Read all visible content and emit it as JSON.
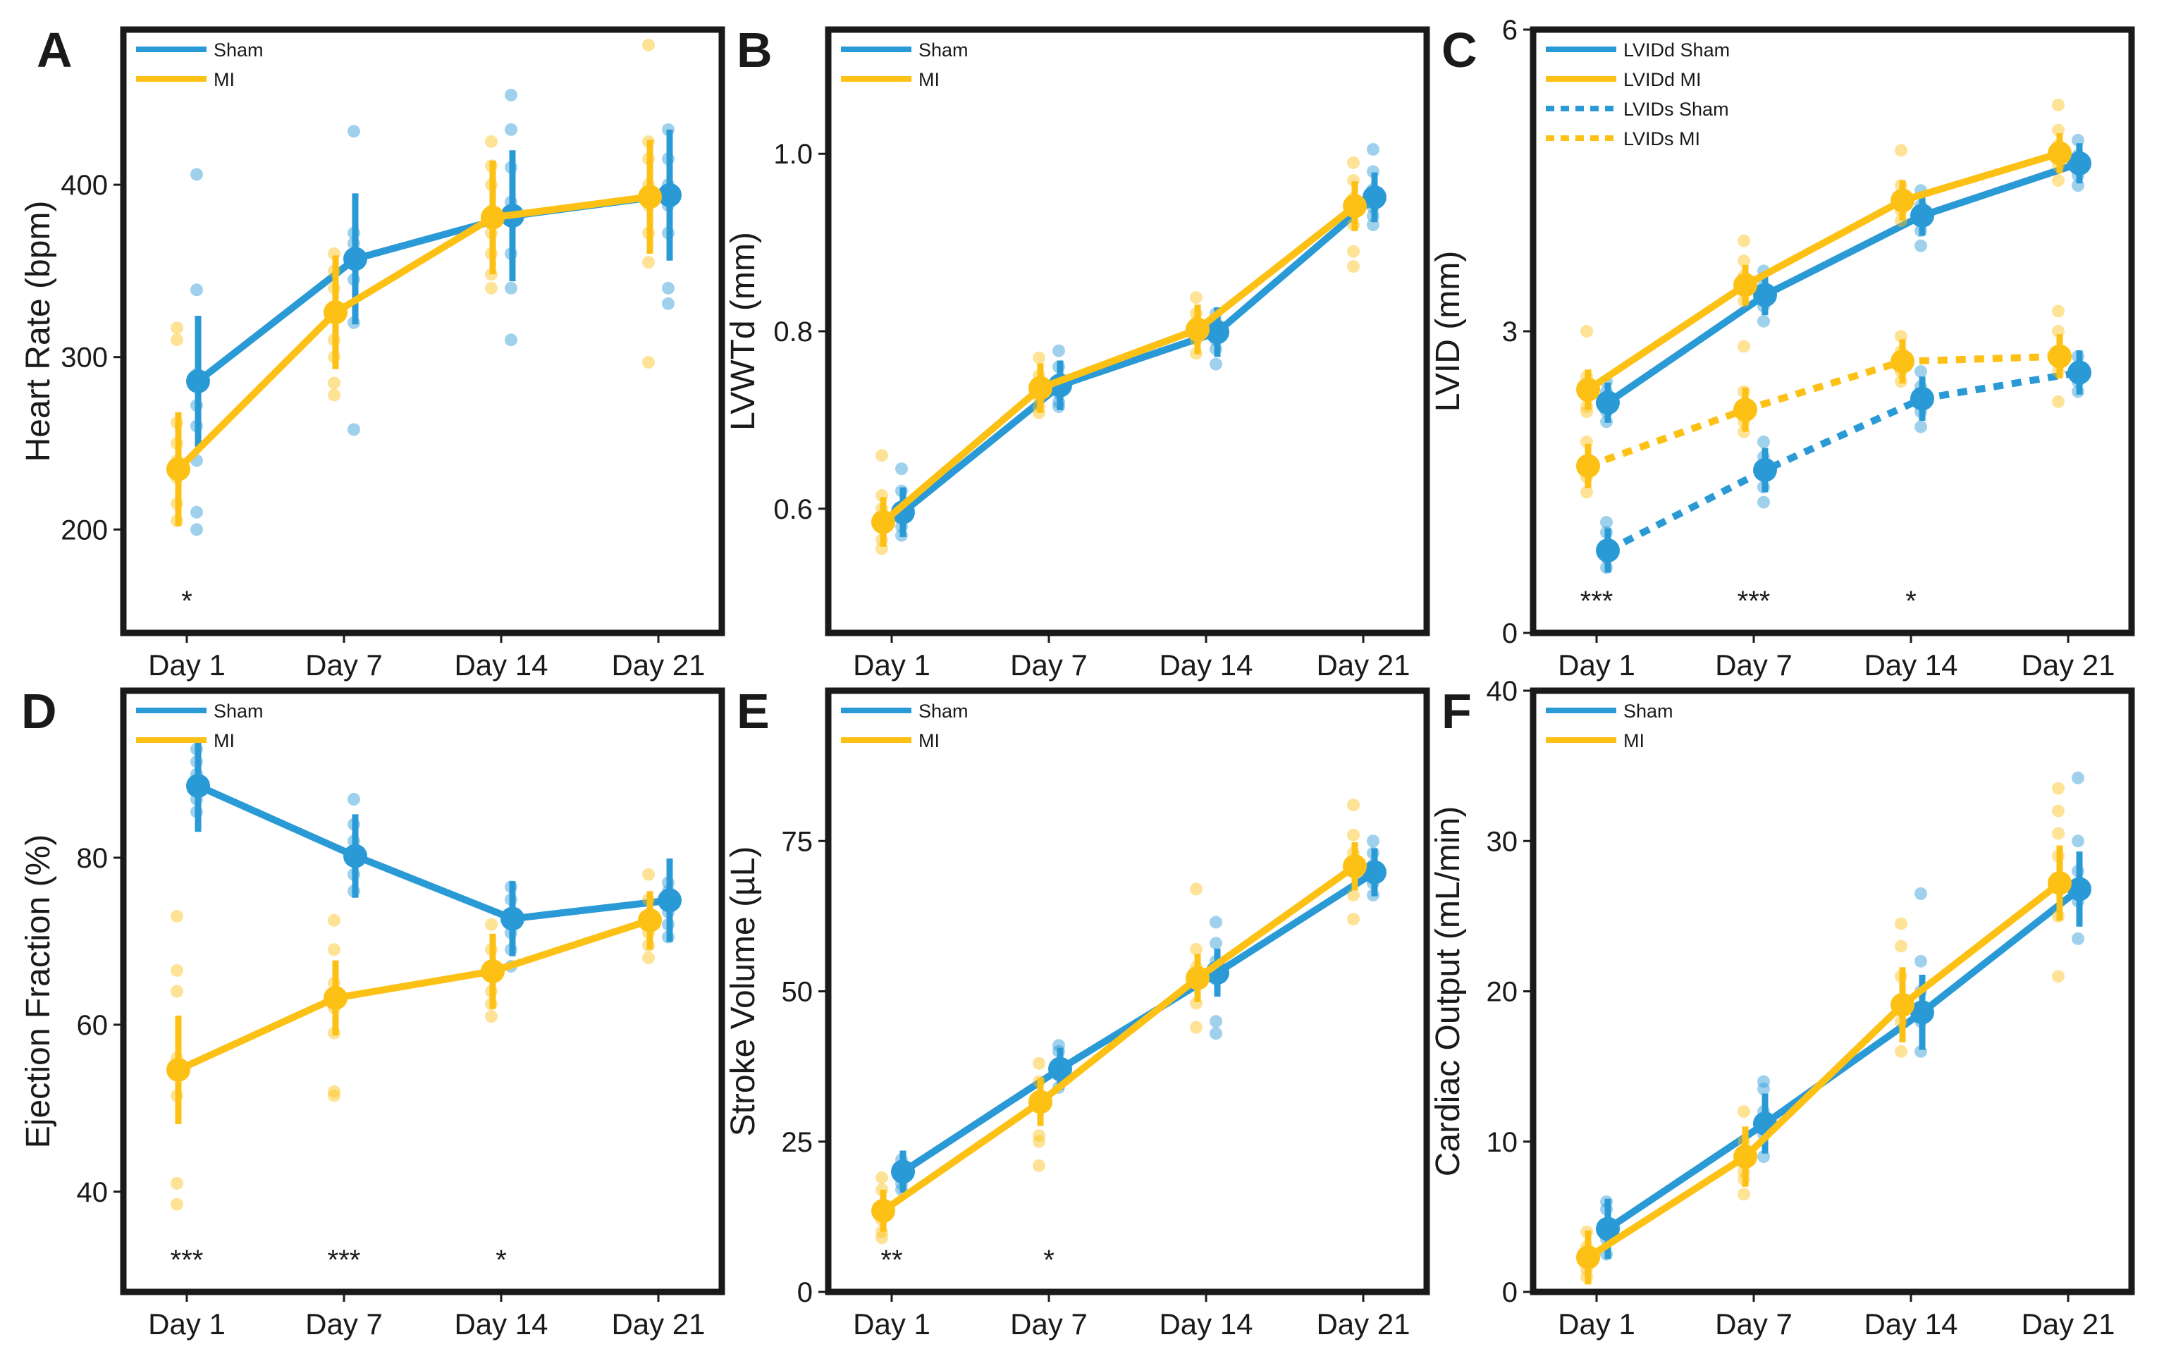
{
  "colors": {
    "sham": "#2a9ad6",
    "mi": "#fdc116"
  },
  "chart_data": [
    {
      "type": "line",
      "panel": "A",
      "ylabel": "Heart Rate (bpm)",
      "xlabel": "",
      "categories": [
        "Day 1",
        "Day 7",
        "Day 14",
        "Day 21"
      ],
      "ylim": [
        140,
        490
      ],
      "yticks": [
        200,
        300,
        400
      ],
      "legend": "top-left",
      "series": [
        {
          "name": "Sham",
          "color": "sham",
          "style": "solid",
          "values": [
            286,
            357,
            382,
            394
          ],
          "errors": [
            38,
            38,
            38,
            38
          ],
          "points": [
            [
              406,
              339,
              290,
              272,
              260,
              240,
              210,
              200
            ],
            [
              431,
              372,
              366,
              360,
              355,
              345,
              320,
              258
            ],
            [
              452,
              432,
              410,
              390,
              380,
              360,
              340,
              310
            ],
            [
              432,
              415,
              400,
              395,
              388,
              372,
              340,
              331
            ]
          ]
        },
        {
          "name": "MI",
          "color": "mi",
          "style": "solid",
          "values": [
            235,
            326,
            381,
            393
          ],
          "errors": [
            33,
            33,
            33,
            33
          ],
          "points": [
            [
              317,
              310,
              262,
              250,
              240,
              230,
              215,
              205
            ],
            [
              360,
              350,
              340,
              325,
              310,
              300,
              285,
              278
            ],
            [
              425,
              411,
              400,
              385,
              372,
              360,
              348,
              340
            ],
            [
              481,
              425,
              415,
              400,
              388,
              372,
              355,
              297
            ]
          ]
        }
      ],
      "annotations": [
        "*",
        "",
        "",
        ""
      ]
    },
    {
      "type": "line",
      "panel": "B",
      "ylabel": "LVWTd (mm)",
      "xlabel": "",
      "categories": [
        "Day 1",
        "Day 7",
        "Day 14",
        "Day 21"
      ],
      "ylim": [
        0.46,
        1.14
      ],
      "yticks": [
        0.6,
        0.8,
        1.0
      ],
      "yticklabels": [
        "0.6",
        "0.8",
        "1.0"
      ],
      "legend": "top-left",
      "series": [
        {
          "name": "Sham",
          "color": "sham",
          "style": "solid",
          "values": [
            0.596,
            0.739,
            0.799,
            0.951
          ],
          "errors": [
            0.028,
            0.028,
            0.028,
            0.028
          ],
          "points": [
            [
              0.645,
              0.62,
              0.6,
              0.59,
              0.58,
              0.57
            ],
            [
              0.778,
              0.76,
              0.745,
              0.73,
              0.72,
              0.715
            ],
            [
              0.82,
              0.81,
              0.8,
              0.79,
              0.78,
              0.763
            ],
            [
              1.005,
              0.98,
              0.96,
              0.94,
              0.93,
              0.92
            ]
          ]
        },
        {
          "name": "MI",
          "color": "mi",
          "style": "solid",
          "values": [
            0.585,
            0.736,
            0.802,
            0.941
          ],
          "errors": [
            0.028,
            0.028,
            0.028,
            0.028
          ],
          "points": [
            [
              0.66,
              0.615,
              0.6,
              0.58,
              0.565,
              0.555
            ],
            [
              0.77,
              0.75,
              0.74,
              0.725,
              0.715,
              0.708
            ],
            [
              0.838,
              0.82,
              0.81,
              0.8,
              0.79,
              0.775
            ],
            [
              0.99,
              0.97,
              0.95,
              0.92,
              0.89,
              0.873
            ]
          ]
        }
      ],
      "annotations": [
        "",
        "",
        "",
        ""
      ]
    },
    {
      "type": "line",
      "panel": "C",
      "ylabel": "LVID (mm)",
      "xlabel": "",
      "categories": [
        "Day 1",
        "Day 7",
        "Day 14",
        "Day 21"
      ],
      "ylim": [
        0,
        6
      ],
      "yticks": [
        0,
        3,
        6
      ],
      "legend": "top-left",
      "series": [
        {
          "name": "LVIDd Sham",
          "color": "sham",
          "style": "solid",
          "values": [
            2.29,
            3.36,
            4.15,
            4.67
          ],
          "errors": [
            0.2,
            0.2,
            0.2,
            0.2
          ],
          "points": [
            [
              2.5,
              2.4,
              2.3,
              2.2,
              2.1
            ],
            [
              3.6,
              3.45,
              3.35,
              3.25,
              3.1
            ],
            [
              4.4,
              4.25,
              4.15,
              4.0,
              3.85
            ],
            [
              4.9,
              4.75,
              4.65,
              4.55,
              4.45
            ]
          ]
        },
        {
          "name": "LVIDd MI",
          "color": "mi",
          "style": "solid",
          "values": [
            2.42,
            3.46,
            4.3,
            4.77
          ],
          "errors": [
            0.2,
            0.2,
            0.2,
            0.2
          ],
          "points": [
            [
              3.0,
              2.55,
              2.45,
              2.35,
              2.25
            ],
            [
              3.9,
              3.7,
              3.55,
              3.4,
              3.3
            ],
            [
              4.8,
              4.45,
              4.35,
              4.2,
              4.1
            ],
            [
              5.25,
              5.0,
              4.85,
              4.65,
              4.5
            ]
          ]
        },
        {
          "name": "LVIDs Sham",
          "color": "sham",
          "style": "dashed",
          "values": [
            0.82,
            1.62,
            2.33,
            2.59
          ],
          "errors": [
            0.22,
            0.22,
            0.22,
            0.22
          ],
          "points": [
            [
              1.1,
              1.0,
              0.85,
              0.75,
              0.65
            ],
            [
              1.9,
              1.75,
              1.6,
              1.45,
              1.3
            ],
            [
              2.6,
              2.45,
              2.3,
              2.2,
              2.05
            ],
            [
              2.75,
              2.65,
              2.6,
              2.5,
              2.4
            ]
          ]
        },
        {
          "name": "LVIDs MI",
          "color": "mi",
          "style": "dashed",
          "values": [
            1.66,
            2.22,
            2.7,
            2.75
          ],
          "errors": [
            0.22,
            0.22,
            0.22,
            0.22
          ],
          "points": [
            [
              2.2,
              1.9,
              1.7,
              1.55,
              1.4
            ],
            [
              2.85,
              2.4,
              2.25,
              2.1,
              2.0
            ],
            [
              2.95,
              2.8,
              2.7,
              2.6,
              2.5
            ],
            [
              3.2,
              3.0,
              2.8,
              2.6,
              2.3
            ]
          ]
        }
      ],
      "annotations": [
        "***",
        "***",
        "*",
        ""
      ]
    },
    {
      "type": "line",
      "panel": "D",
      "ylabel": "Ejection Fraction (%)",
      "xlabel": "",
      "categories": [
        "Day 1",
        "Day 7",
        "Day 14",
        "Day 21"
      ],
      "ylim": [
        28,
        100
      ],
      "yticks": [
        40,
        60,
        80
      ],
      "legend": "top-left",
      "series": [
        {
          "name": "Sham",
          "color": "sham",
          "style": "solid",
          "values": [
            88.6,
            80.2,
            72.7,
            74.9
          ],
          "errors": [
            5.5,
            5.0,
            4.5,
            5.0
          ],
          "points": [
            [
              93.0,
              91.5,
              90.0,
              88.5,
              87.0,
              85.5
            ],
            [
              87.0,
              84.0,
              82.0,
              80.0,
              78.0,
              76.0
            ],
            [
              76.5,
              75.0,
              73.0,
              71.0,
              69.0,
              67.0
            ],
            [
              77.0,
              76.0,
              75.0,
              73.5,
              72.0,
              70.5
            ]
          ]
        },
        {
          "name": "MI",
          "color": "mi",
          "style": "solid",
          "values": [
            54.6,
            63.2,
            66.4,
            72.5
          ],
          "errors": [
            6.5,
            4.5,
            4.5,
            3.5
          ],
          "points": [
            [
              73.0,
              66.5,
              64.0,
              56.0,
              51.5,
              41.0,
              38.5
            ],
            [
              72.5,
              69.0,
              65.0,
              62.0,
              59.0,
              52.0,
              51.5
            ],
            [
              72.0,
              69.0,
              66.0,
              64.0,
              62.5,
              61.0
            ],
            [
              78.0,
              75.0,
              73.0,
              71.0,
              69.5,
              68.0
            ]
          ]
        }
      ],
      "annotations": [
        "***",
        "***",
        "*",
        ""
      ]
    },
    {
      "type": "line",
      "panel": "E",
      "ylabel": "Stroke Volume (µL)",
      "xlabel": "",
      "categories": [
        "Day 1",
        "Day 7",
        "Day 14",
        "Day 21"
      ],
      "ylim": [
        0,
        100
      ],
      "yticks": [
        0,
        25,
        50,
        75
      ],
      "legend": "top-left",
      "series": [
        {
          "name": "Sham",
          "color": "sham",
          "style": "solid",
          "values": [
            20.0,
            37.1,
            53.1,
            69.8
          ],
          "errors": [
            3.5,
            3.5,
            4.0,
            4.0
          ],
          "points": [
            [
              22.0,
              21.0,
              19.0,
              18.0,
              17.0
            ],
            [
              41.0,
              40.0,
              38.0,
              36.0,
              34.0
            ],
            [
              61.5,
              58.0,
              55.0,
              52.0,
              45.0,
              43.0
            ],
            [
              75.0,
              73.0,
              71.0,
              68.0,
              66.0
            ]
          ]
        },
        {
          "name": "MI",
          "color": "mi",
          "style": "solid",
          "values": [
            13.5,
            31.6,
            52.2,
            70.8
          ],
          "errors": [
            3.5,
            4.0,
            4.0,
            4.0
          ],
          "points": [
            [
              19.0,
              17.0,
              14.0,
              12.0,
              10.0,
              9.0
            ],
            [
              38.0,
              35.0,
              32.0,
              26.0,
              25.0,
              21.0
            ],
            [
              67.0,
              57.0,
              54.0,
              52.0,
              48.0,
              44.0
            ],
            [
              81.0,
              76.0,
              73.0,
              70.0,
              66.0,
              62.0
            ]
          ]
        }
      ],
      "annotations": [
        "**",
        "*",
        "",
        ""
      ]
    },
    {
      "type": "line",
      "panel": "F",
      "ylabel": "Cardiac Output (mL/min)",
      "xlabel": "",
      "categories": [
        "Day 1",
        "Day 7",
        "Day 14",
        "Day 21"
      ],
      "ylim": [
        0,
        40
      ],
      "yticks": [
        0,
        10,
        20,
        30,
        40
      ],
      "legend": "top-left",
      "series": [
        {
          "name": "Sham",
          "color": "sham",
          "style": "solid",
          "values": [
            4.2,
            11.2,
            18.6,
            26.8
          ],
          "errors": [
            2.0,
            2.0,
            2.5,
            2.5
          ],
          "points": [
            [
              6.0,
              5.5,
              4.5,
              3.5,
              2.5
            ],
            [
              14.0,
              13.5,
              12.0,
              10.5,
              9.0
            ],
            [
              26.5,
              22.0,
              20.0,
              18.0,
              16.0
            ],
            [
              34.2,
              30.0,
              28.0,
              26.0,
              23.5
            ]
          ]
        },
        {
          "name": "MI",
          "color": "mi",
          "style": "solid",
          "values": [
            2.3,
            9.0,
            19.1,
            27.2
          ],
          "errors": [
            1.8,
            2.0,
            2.5,
            2.5
          ],
          "points": [
            [
              4.0,
              3.0,
              2.0,
              1.5,
              1.0
            ],
            [
              12.0,
              10.0,
              8.0,
              7.5,
              6.5
            ],
            [
              24.5,
              23.0,
              21.0,
              18.0,
              16.0
            ],
            [
              33.5,
              32.0,
              30.5,
              29.0,
              25.0,
              21.0
            ]
          ]
        }
      ],
      "annotations": [
        "",
        "",
        "",
        ""
      ]
    }
  ]
}
